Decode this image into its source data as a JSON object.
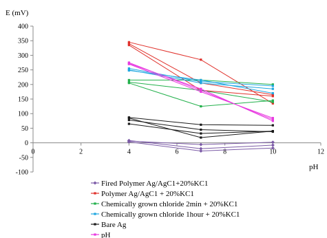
{
  "chart_data": {
    "type": "line",
    "ylabel": "E (mV)",
    "xlabel": "pH",
    "xlim": [
      0,
      12
    ],
    "ylim": [
      -100,
      400
    ],
    "xticks": [
      0,
      2,
      4,
      6,
      8,
      10,
      12
    ],
    "yticks": [
      -100,
      -50,
      0,
      50,
      100,
      150,
      200,
      250,
      300,
      350,
      400
    ],
    "grid": false,
    "legend_position": "bottom",
    "series": [
      {
        "name": "Fired Polymer Ag/AgC1+20%KC1",
        "color": "#7b5aa6",
        "marker": "diamond",
        "lines": [
          {
            "x": [
              4,
              7,
              10
            ],
            "y": [
              8,
              -20,
              -8
            ]
          },
          {
            "x": [
              4,
              7,
              10
            ],
            "y": [
              3,
              -28,
              -18
            ]
          },
          {
            "x": [
              4,
              7,
              10
            ],
            "y": [
              6,
              -6,
              2
            ]
          }
        ]
      },
      {
        "name": "Polymer Ag/AgC1 + 20%KC1",
        "color": "#e0302a",
        "marker": "square",
        "lines": [
          {
            "x": [
              4,
              7,
              10
            ],
            "y": [
              345,
              285,
              135
            ]
          },
          {
            "x": [
              4,
              7,
              10
            ],
            "y": [
              340,
              205,
              165
            ]
          },
          {
            "x": [
              4,
              7,
              10
            ],
            "y": [
              335,
              180,
              160
            ]
          }
        ]
      },
      {
        "name": "Chemically grown chloride 2min + 20%KC1",
        "color": "#22b04b",
        "marker": "square",
        "lines": [
          {
            "x": [
              4,
              7,
              10
            ],
            "y": [
              215,
              215,
              200
            ]
          },
          {
            "x": [
              4,
              7,
              10
            ],
            "y": [
              208,
              180,
              140
            ]
          },
          {
            "x": [
              4,
              7,
              10
            ],
            "y": [
              205,
              125,
              145
            ]
          }
        ]
      },
      {
        "name": "Chemically grown chloride 1hour + 20%KC1",
        "color": "#1ea7e1",
        "marker": "square",
        "lines": [
          {
            "x": [
              4,
              7,
              10
            ],
            "y": [
              255,
              210,
              195
            ]
          },
          {
            "x": [
              4,
              7,
              10
            ],
            "y": [
              250,
              205,
              185
            ]
          },
          {
            "x": [
              4,
              7,
              10
            ],
            "y": [
              248,
              215,
              170
            ]
          }
        ]
      },
      {
        "name": "Bare Ag",
        "color": "#1a1a1a",
        "marker": "square",
        "lines": [
          {
            "x": [
              4,
              7,
              10
            ],
            "y": [
              87,
              62,
              60
            ]
          },
          {
            "x": [
              4,
              7,
              10
            ],
            "y": [
              78,
              45,
              38
            ]
          },
          {
            "x": [
              4,
              7,
              10
            ],
            "y": [
              65,
              32,
              40
            ]
          },
          {
            "x": [
              4,
              7,
              10
            ],
            "y": [
              85,
              18,
              40
            ]
          }
        ]
      },
      {
        "name": "pH",
        "color": "#e83ae0",
        "marker": "square",
        "lines": [
          {
            "x": [
              4,
              7,
              10
            ],
            "y": [
              275,
              180,
              80
            ]
          },
          {
            "x": [
              4,
              7,
              10
            ],
            "y": [
              270,
              175,
              85
            ]
          },
          {
            "x": [
              4,
              7,
              10
            ],
            "y": [
              272,
              185,
              75
            ]
          }
        ]
      }
    ]
  }
}
